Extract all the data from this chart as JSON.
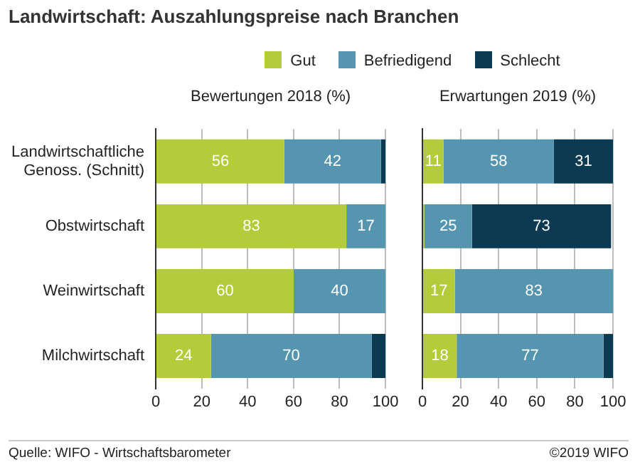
{
  "chart_data": [
    {
      "type": "bar",
      "orientation": "horizontal",
      "stacked": true,
      "title": "Landwirtschaft: Auszahlungspreise nach Branchen",
      "subtitle": "Bewertungen 2018 (%)",
      "legend": "top",
      "grid": "x",
      "categories": [
        "Landwirtschaftliche Genoss. (Schnitt)",
        "Obstwirtschaft",
        "Weinwirtschaft",
        "Milchwirtschaft"
      ],
      "xlim": [
        0,
        100
      ],
      "xticks": [
        0,
        20,
        40,
        60,
        80,
        100
      ],
      "series": [
        {
          "name": "Gut",
          "color": "#b5cc3a",
          "values": [
            56,
            83,
            60,
            24
          ],
          "value_labels": [
            "56",
            "83",
            "60",
            "24"
          ]
        },
        {
          "name": "Befriedigend",
          "color": "#5595b0",
          "values": [
            42,
            17,
            40,
            70
          ],
          "value_labels": [
            "42",
            "17",
            "40",
            "70"
          ]
        },
        {
          "name": "Schlecht",
          "color": "#0b3a52",
          "values": [
            2,
            0,
            0,
            6
          ],
          "value_labels": [
            null,
            null,
            null,
            null
          ]
        }
      ],
      "annotations": [
        "Quelle: WIFO - Wirtschaftsbarometer",
        "©2019 WIFO"
      ]
    },
    {
      "type": "bar",
      "orientation": "horizontal",
      "stacked": true,
      "subtitle": "Erwartungen 2019 (%)",
      "grid": "x",
      "tick_labels": "x",
      "categories": [
        null,
        null,
        null,
        null
      ],
      "xlim": [
        0,
        100
      ],
      "xticks": [
        0,
        20,
        40,
        60,
        80,
        100
      ],
      "series": [
        {
          "color": "#b5cc3a",
          "values": [
            11,
            1,
            17,
            18
          ],
          "value_labels": [
            "11",
            null,
            "17",
            "18"
          ]
        },
        {
          "color": "#5595b0",
          "values": [
            58,
            25,
            83,
            77
          ],
          "value_labels": [
            "58",
            "25",
            "83",
            "77"
          ]
        },
        {
          "color": "#0b3a52",
          "values": [
            31,
            73,
            0,
            5
          ],
          "value_labels": [
            "31",
            "73",
            null,
            null
          ]
        }
      ]
    }
  ]
}
